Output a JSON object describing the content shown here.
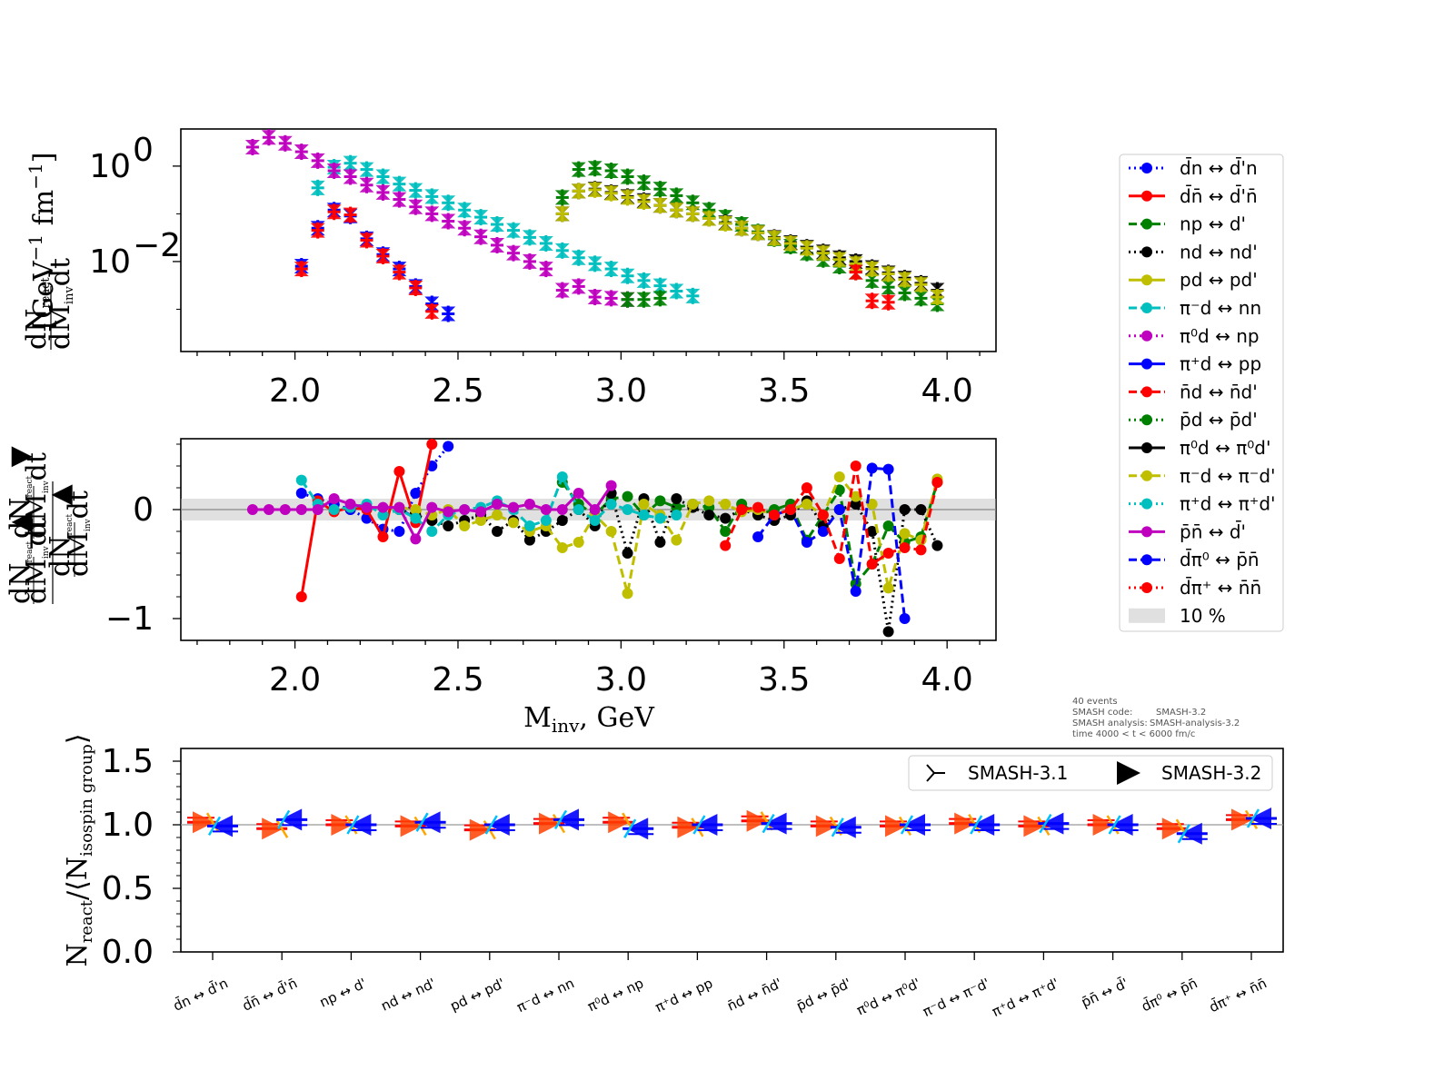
{
  "chart_data": [
    {
      "type": "scatter",
      "ylabel": "dN_react / dM_inv dt [GeV^-1 fm^-1]",
      "yscale": "log",
      "x_ticks": [
        "2.0",
        "2.5",
        "3.0",
        "3.5",
        "4.0"
      ],
      "y_ticks": [
        {
          "base": "10",
          "exp": "0",
          "value": 1
        },
        {
          "base": "10",
          "exp": "−2",
          "value": 0.01
        }
      ],
      "xlim": [
        1.65,
        4.15
      ],
      "ylim": [
        0.00013,
        6
      ],
      "series": [
        {
          "name": "d̄n ↔ d̄'n",
          "color": "#0000ff",
          "x": [
            2.02,
            2.07,
            2.12,
            2.17,
            2.22,
            2.27,
            2.32,
            2.37,
            2.42,
            2.47
          ],
          "y": [
            0.008,
            0.05,
            0.12,
            0.09,
            0.03,
            0.014,
            0.007,
            0.003,
            0.0013,
            0.0008
          ]
        },
        {
          "name": "d̄n̄ ↔ d̄'n̄",
          "color": "#ff0000",
          "x": [
            2.02,
            2.07,
            2.12,
            2.17,
            2.22,
            2.27,
            2.32,
            2.37,
            2.42
          ],
          "y": [
            0.007,
            0.045,
            0.11,
            0.095,
            0.028,
            0.013,
            0.006,
            0.0028,
            0.0009
          ]
        },
        {
          "name": "np ↔ d'",
          "color": "#008000",
          "x": [
            2.82,
            2.87,
            2.92,
            2.97,
            3.02,
            3.07,
            3.12,
            3.17,
            3.22,
            3.27,
            3.32,
            3.37,
            3.42,
            3.47,
            3.52,
            3.57,
            3.62,
            3.67,
            3.72,
            3.77,
            3.82,
            3.87,
            3.92,
            3.97
          ],
          "y": [
            0.22,
            0.85,
            0.9,
            0.8,
            0.6,
            0.45,
            0.33,
            0.24,
            0.17,
            0.12,
            0.085,
            0.06,
            0.042,
            0.03,
            0.021,
            0.015,
            0.011,
            0.008,
            0.006,
            0.004,
            0.0029,
            0.0022,
            0.0017,
            0.0013
          ]
        },
        {
          "name": "nd ↔ nd'",
          "color": "#000000",
          "x": [
            2.82,
            2.87,
            2.92,
            2.97,
            3.02,
            3.07,
            3.12,
            3.17,
            3.22,
            3.27,
            3.32,
            3.37,
            3.42,
            3.47,
            3.52,
            3.57,
            3.62,
            3.67,
            3.72,
            3.77,
            3.82,
            3.87,
            3.92,
            3.97
          ],
          "y": [
            0.1,
            0.3,
            0.33,
            0.28,
            0.23,
            0.19,
            0.15,
            0.12,
            0.1,
            0.08,
            0.065,
            0.05,
            0.04,
            0.032,
            0.025,
            0.02,
            0.016,
            0.012,
            0.01,
            0.0075,
            0.0058,
            0.0045,
            0.0035,
            0.0025
          ]
        },
        {
          "name": "pd ↔ pd'",
          "color": "#bfbf00",
          "x": [
            2.82,
            2.87,
            2.92,
            2.97,
            3.02,
            3.07,
            3.12,
            3.17,
            3.22,
            3.27,
            3.32,
            3.37,
            3.42,
            3.47,
            3.52,
            3.57,
            3.62,
            3.67,
            3.72,
            3.77,
            3.82,
            3.87,
            3.92,
            3.97
          ],
          "y": [
            0.1,
            0.3,
            0.32,
            0.27,
            0.22,
            0.18,
            0.15,
            0.12,
            0.1,
            0.08,
            0.063,
            0.05,
            0.04,
            0.031,
            0.024,
            0.019,
            0.015,
            0.011,
            0.009,
            0.007,
            0.0055,
            0.0042,
            0.0033,
            0.0018
          ]
        },
        {
          "name": "π⁻d ↔ nn",
          "color": "#00bfbf",
          "x": [
            2.07,
            2.12,
            2.17,
            2.22,
            2.27,
            2.32,
            2.37,
            2.42,
            2.47,
            2.52,
            2.57,
            2.62,
            2.67,
            2.72,
            2.77,
            2.82,
            2.87,
            2.92,
            2.97,
            3.02,
            3.07,
            3.12,
            3.17,
            3.22
          ],
          "y": [
            0.35,
            0.95,
            1.15,
            0.85,
            0.6,
            0.42,
            0.31,
            0.23,
            0.17,
            0.12,
            0.085,
            0.06,
            0.045,
            0.032,
            0.024,
            0.017,
            0.012,
            0.009,
            0.007,
            0.005,
            0.004,
            0.0031,
            0.0024,
            0.0019
          ]
        },
        {
          "name": "π⁰d ↔ np",
          "color": "#bf00bf",
          "x": [
            1.87,
            1.92,
            1.97,
            2.02,
            2.07,
            2.12,
            2.17,
            2.22,
            2.27,
            2.32,
            2.37,
            2.42,
            2.47,
            2.52,
            2.57,
            2.62,
            2.67,
            2.72,
            2.77,
            2.82,
            2.87,
            2.92,
            2.97,
            3.02
          ],
          "y": [
            2.5,
            4.0,
            3.0,
            2.0,
            1.3,
            0.8,
            0.6,
            0.4,
            0.28,
            0.2,
            0.14,
            0.1,
            0.07,
            0.05,
            0.033,
            0.022,
            0.015,
            0.01,
            0.007,
            0.0025,
            0.003,
            0.0018,
            0.0017,
            0.0016
          ]
        },
        {
          "name": "π⁺d ↔ pp",
          "color": "#0000ff",
          "x": [],
          "y": []
        },
        {
          "name": "n̄d ↔ n̄d'",
          "color": "#ff0000",
          "x": [
            3.72,
            3.77,
            3.82
          ],
          "y": [
            0.006,
            0.0015,
            0.0014
          ]
        },
        {
          "name": "p̄d ↔ p̄d'",
          "color": "#008000",
          "x": [
            3.02,
            3.07,
            3.12
          ],
          "y": [
            0.0016,
            0.0016,
            0.0017
          ]
        },
        {
          "name": "π⁰d ↔ π⁰d'",
          "color": "#000000",
          "x": [],
          "y": []
        },
        {
          "name": "π⁻d ↔ π⁻d'",
          "color": "#bfbf00",
          "x": [],
          "y": []
        },
        {
          "name": "π⁺d ↔ π⁺d'",
          "color": "#00bfbf",
          "x": [],
          "y": []
        },
        {
          "name": "p̄n̄ ↔ d̄'",
          "color": "#bf00bf",
          "x": [],
          "y": []
        },
        {
          "name": "d̄π⁰ ↔ p̄n̄",
          "color": "#0000ff",
          "x": [],
          "y": []
        },
        {
          "name": "d̄π⁺ ↔ n̄n̄",
          "color": "#ff0000",
          "x": [],
          "y": []
        }
      ],
      "legend": {
        "placement": "right",
        "band_label": "10 %"
      }
    },
    {
      "type": "line",
      "ylabel": "(dN_react/dM_inv dt [▲] − dN_react/dM_inv dt [▼]) / dN_react/dM_inv dt [▲]",
      "xlabel": "M_inv, GeV",
      "x_ticks": [
        "2.0",
        "2.5",
        "3.0",
        "3.5",
        "4.0"
      ],
      "y_ticks": [
        {
          "label": "0",
          "value": 0
        },
        {
          "label": "−1",
          "value": -1
        }
      ],
      "xlim": [
        1.65,
        4.15
      ],
      "ylim": [
        -1.2,
        0.65
      ],
      "band": [
        -0.1,
        0.1
      ],
      "series": [
        {
          "color": "#0000ff",
          "dash": "dot",
          "x": [
            2.02,
            2.07,
            2.12,
            2.17,
            2.22,
            2.27,
            2.32,
            2.37,
            2.42,
            2.47
          ],
          "y": [
            0.15,
            0.1,
            0.05,
            0.0,
            -0.08,
            -0.18,
            -0.2,
            0.15,
            0.4,
            0.58
          ]
        },
        {
          "color": "#ff0000",
          "dash": "solid",
          "x": [
            2.02,
            2.07,
            2.12,
            2.17,
            2.22,
            2.27,
            2.32,
            2.37,
            2.42
          ],
          "y": [
            -0.8,
            0.08,
            -0.02,
            0.02,
            0.0,
            -0.25,
            0.35,
            -0.12,
            0.6
          ]
        },
        {
          "color": "#008000",
          "dash": "dash",
          "x": [
            2.82,
            2.87,
            2.92,
            2.97,
            3.02,
            3.07,
            3.12,
            3.17,
            3.22,
            3.27,
            3.32,
            3.37,
            3.42,
            3.47,
            3.52,
            3.57,
            3.62,
            3.67,
            3.72,
            3.77,
            3.82,
            3.87,
            3.92,
            3.97
          ],
          "y": [
            0.25,
            0.05,
            -0.05,
            0.1,
            0.12,
            -0.05,
            0.08,
            0.02,
            0.05,
            0.02,
            -0.2,
            0.05,
            -0.05,
            0.0,
            0.05,
            -0.28,
            -0.05,
            0.18,
            -0.68,
            -0.5,
            -0.15,
            -0.3,
            -0.25,
            0.25
          ]
        },
        {
          "color": "#000000",
          "dash": "dot",
          "x": [
            2.32,
            2.37,
            2.42,
            2.47,
            2.52,
            2.57,
            2.62,
            2.67,
            2.72,
            2.77,
            2.82,
            2.87,
            2.92,
            2.97,
            3.02,
            3.07,
            3.12,
            3.17,
            3.22,
            3.27,
            3.32,
            3.37,
            3.42,
            3.47,
            3.52,
            3.57,
            3.62,
            3.67,
            3.72,
            3.77,
            3.82,
            3.87,
            3.92,
            3.97
          ],
          "y": [
            0.0,
            -0.05,
            -0.1,
            -0.15,
            -0.1,
            -0.05,
            -0.2,
            -0.1,
            -0.28,
            -0.2,
            -0.1,
            0.0,
            -0.15,
            0.15,
            -0.4,
            0.1,
            -0.3,
            0.1,
            0.02,
            -0.05,
            -0.08,
            0.0,
            -0.05,
            -0.1,
            -0.05,
            0.08,
            -0.15,
            0.0,
            0.05,
            -0.2,
            -1.12,
            0.0,
            0.0,
            -0.33
          ]
        },
        {
          "color": "#bfbf00",
          "dash": "dash",
          "x": [
            2.32,
            2.37,
            2.42,
            2.47,
            2.52,
            2.57,
            2.62,
            2.67,
            2.72,
            2.77,
            2.82,
            2.87,
            2.92,
            2.97,
            3.02,
            3.07,
            3.12,
            3.17,
            3.22,
            3.27,
            3.32,
            3.37,
            3.42,
            3.47,
            3.52,
            3.57,
            3.62,
            3.67,
            3.72,
            3.77,
            3.82,
            3.87,
            3.92,
            3.97
          ],
          "y": [
            0.02,
            0.0,
            -0.05,
            0.0,
            -0.15,
            -0.1,
            -0.05,
            -0.12,
            -0.2,
            -0.15,
            -0.35,
            -0.3,
            -0.05,
            -0.2,
            -0.77,
            0.05,
            -0.05,
            -0.28,
            0.05,
            0.08,
            0.05,
            -0.02,
            0.0,
            -0.05,
            0.0,
            0.05,
            -0.05,
            0.3,
            0.12,
            0.05,
            -0.72,
            -0.22,
            -0.28,
            0.28
          ]
        },
        {
          "color": "#00bfbf",
          "dash": "dash",
          "x": [
            2.02,
            2.07,
            2.12,
            2.17,
            2.22,
            2.27,
            2.32,
            2.37,
            2.42,
            2.47,
            2.52,
            2.57,
            2.62,
            2.67,
            2.72,
            2.77,
            2.82,
            2.87,
            2.92,
            2.97,
            3.02,
            3.07,
            3.12,
            3.17
          ],
          "y": [
            0.27,
            0.05,
            0.0,
            0.02,
            0.05,
            -0.05,
            0.0,
            -0.08,
            -0.2,
            -0.05,
            0.0,
            0.02,
            0.08,
            0.0,
            -0.15,
            -0.1,
            0.3,
            0.0,
            -0.1,
            0.05,
            0.0,
            -0.05,
            -0.08,
            -0.05
          ]
        },
        {
          "color": "#bf00bf",
          "dash": "solid",
          "x": [
            1.87,
            1.92,
            1.97,
            2.02,
            2.07,
            2.12,
            2.17,
            2.22,
            2.27,
            2.32,
            2.37,
            2.42,
            2.47,
            2.52,
            2.57,
            2.62,
            2.67,
            2.72,
            2.77,
            2.82,
            2.87,
            2.92,
            2.97
          ],
          "y": [
            0.0,
            0.0,
            0.0,
            0.0,
            0.0,
            0.1,
            0.05,
            0.02,
            0.02,
            0.02,
            -0.27,
            0.02,
            -0.02,
            0.0,
            -0.02,
            0.05,
            0.02,
            0.05,
            0.0,
            0.0,
            0.15,
            0.0,
            0.22
          ]
        },
        {
          "color": "#0000ff",
          "dash": "dash",
          "x": [
            3.42,
            3.47,
            3.52,
            3.57,
            3.62,
            3.67,
            3.72,
            3.77,
            3.82,
            3.87
          ],
          "y": [
            -0.25,
            -0.05,
            0.0,
            -0.3,
            -0.2,
            0.0,
            -0.75,
            0.38,
            0.37,
            -1.0
          ]
        },
        {
          "color": "#ff0000",
          "dash": "dash",
          "x": [
            3.32,
            3.37,
            3.42,
            3.47,
            3.52,
            3.57,
            3.62,
            3.67,
            3.72,
            3.77,
            3.82,
            3.87,
            3.92,
            3.97
          ],
          "y": [
            -0.33,
            0.0,
            0.02,
            -0.05,
            0.0,
            0.2,
            -0.05,
            -0.45,
            0.4,
            -0.5,
            -0.4,
            -0.35,
            -0.37,
            0.25
          ]
        }
      ]
    },
    {
      "type": "scatter",
      "ylabel": "N_react/⟨N_isospin group⟩",
      "y_ticks": [
        "0.0",
        "0.5",
        "1.0",
        "1.5"
      ],
      "ylim": [
        0,
        1.6
      ],
      "categories": [
        "d̄n ↔ d̄'n",
        "d̄n̄ ↔ d̄'n̄",
        "np ↔ d'",
        "nd ↔ nd'",
        "pd ↔ pd'",
        "π⁻d ↔ nn",
        "π⁰d ↔ np",
        "π⁺d ↔ pp",
        "n̄d ↔ n̄d'",
        "p̄d ↔ p̄d'",
        "π⁰d ↔ π⁰d'",
        "π⁻d ↔ π⁻d'",
        "π⁺d ↔ π⁺d'",
        "p̄n̄ ↔ d̄'",
        "d̄π⁰ ↔ p̄n̄",
        "d̄π⁺ ↔ n̄n̄"
      ],
      "series": [
        {
          "name": "SMASH-3.1",
          "values": [
            1.02,
            0.97,
            1.0,
            0.99,
            0.96,
            1.01,
            1.02,
            0.98,
            1.03,
            0.99,
            0.99,
            1.01,
            0.99,
            1.0,
            0.97,
            1.04
          ]
        },
        {
          "name": "SMASH-3.2",
          "values": [
            0.99,
            1.04,
            1.0,
            1.02,
            1.0,
            1.04,
            0.97,
            1.0,
            1.01,
            0.98,
            1.0,
            1.0,
            1.01,
            1.0,
            0.93,
            1.05
          ]
        }
      ],
      "legend": {
        "placement": "top-right"
      }
    }
  ],
  "info": {
    "events": "40 events",
    "code_label": "SMASH code:",
    "code_value": "SMASH-3.2",
    "analysis_label": "SMASH analysis:",
    "analysis_value": "SMASH-analysis-3.2",
    "time": "time 4000 < t < 6000 fm/c"
  }
}
